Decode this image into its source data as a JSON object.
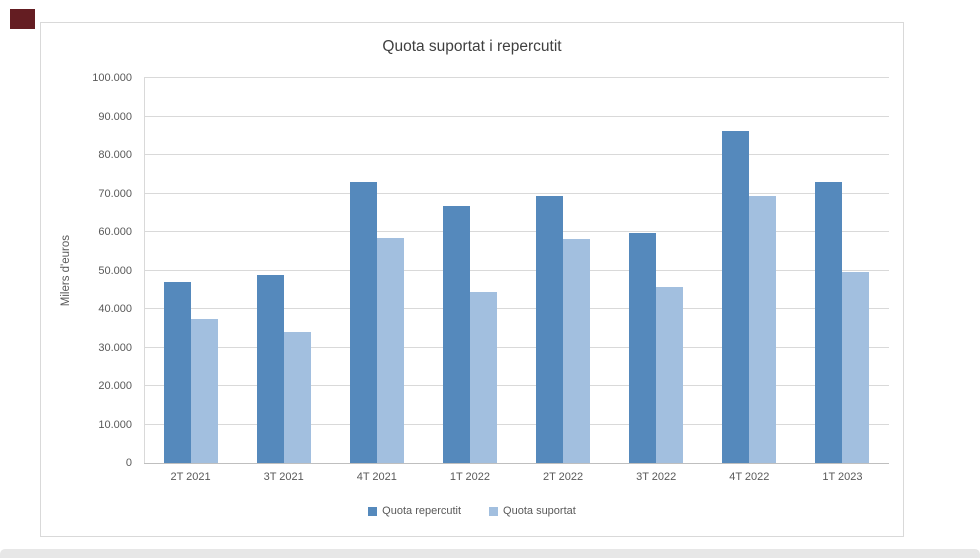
{
  "window": {
    "corner_mark_color": "#641d22",
    "bottom_strip_color": "#e7e7e7"
  },
  "chart_data": {
    "type": "bar",
    "title": "Quota suportat i repercutit",
    "xlabel": "",
    "ylabel": "Milers d'euros",
    "categories": [
      "2T 2021",
      "3T 2021",
      "4T 2021",
      "1T 2022",
      "2T 2022",
      "3T 2022",
      "4T 2022",
      "1T 2023"
    ],
    "series": [
      {
        "name": "Quota repercutit",
        "color": "#5589bc",
        "values": [
          47100,
          48900,
          73100,
          66700,
          69300,
          59700,
          86300,
          73100
        ]
      },
      {
        "name": "Quota suportat",
        "color": "#a2bfdf",
        "values": [
          37500,
          34000,
          58500,
          44300,
          58300,
          45700,
          69300,
          49500
        ]
      }
    ],
    "ylim": [
      0,
      100000
    ],
    "ytick_step": 10000,
    "ytick_labels": [
      "0",
      "10.000",
      "20.000",
      "30.000",
      "40.000",
      "50.000",
      "60.000",
      "70.000",
      "80.000",
      "90.000",
      "100.000"
    ],
    "grid": true,
    "grid_color": "#d9d9d9",
    "axis_color": "#bfbfbf",
    "text_color": "#595959",
    "legend_position": "bottom"
  }
}
